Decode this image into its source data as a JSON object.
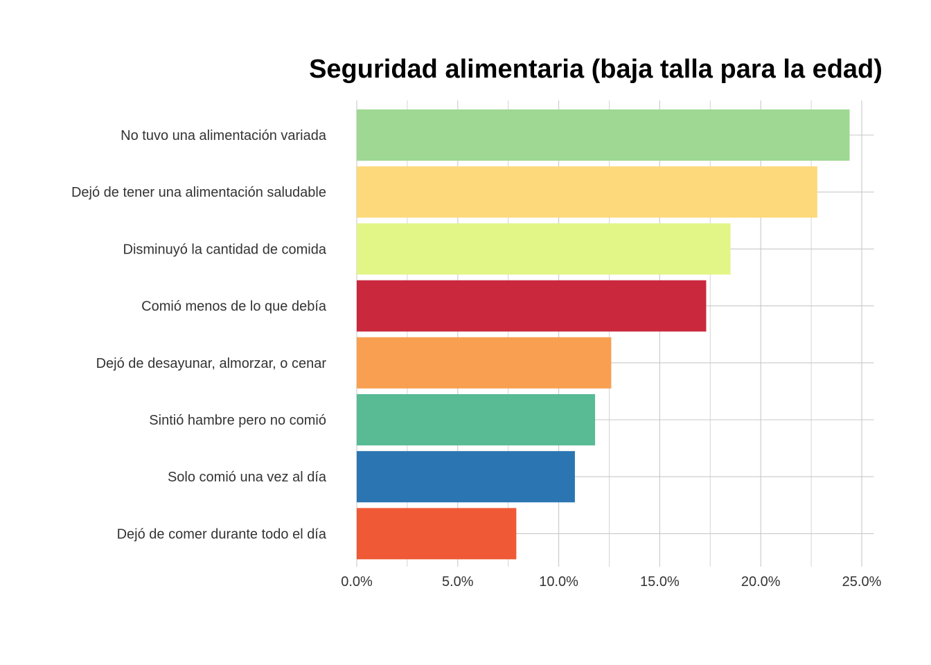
{
  "chart_data": {
    "type": "bar",
    "orientation": "horizontal",
    "title": "Seguridad alimentaria (baja talla para la edad)",
    "xlabel": "",
    "ylabel": "",
    "xlim": [
      0,
      25.6
    ],
    "x_ticks": [
      0,
      5,
      10,
      15,
      20,
      25
    ],
    "x_tick_labels": [
      "0.0%",
      "5.0%",
      "10.0%",
      "15.0%",
      "20.0%",
      "25.0%"
    ],
    "grid": true,
    "legend": "none",
    "categories": [
      "No tuvo una alimentación variada",
      "Dejó de tener una alimentación saludable",
      "Disminuyó la cantidad de comida",
      "Comió menos de lo que debía",
      "Dejó de desayunar, almorzar, o cenar",
      "Sintió hambre pero no comió",
      "Solo comió una vez al día",
      "Dejó de comer durante todo el día"
    ],
    "values": [
      24.4,
      22.8,
      18.5,
      17.3,
      12.6,
      11.8,
      10.8,
      7.9
    ],
    "unit": "%",
    "colors": [
      "#9ed892",
      "#fdd97b",
      "#e2f587",
      "#c9283d",
      "#f99f51",
      "#58bb94",
      "#2b76b2",
      "#ef5935"
    ]
  }
}
